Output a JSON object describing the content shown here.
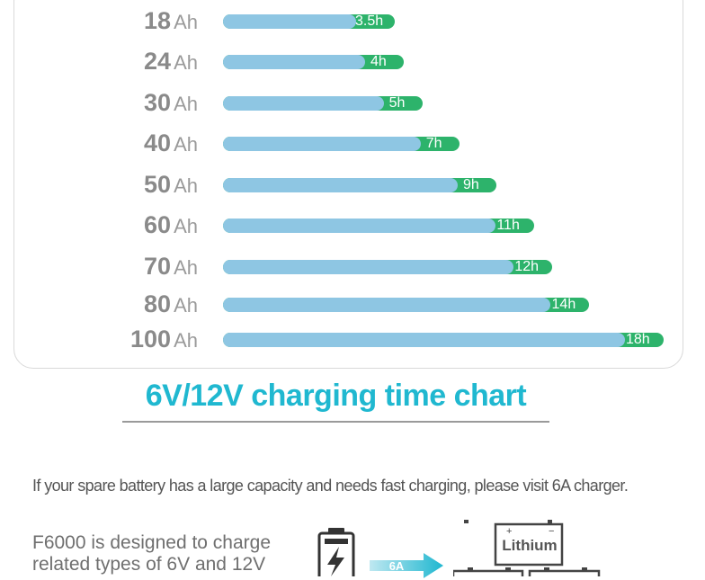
{
  "chart_data": {
    "type": "bar",
    "orientation": "horizontal",
    "title": "6V/12V charging time chart",
    "categories": [
      "18",
      "24",
      "30",
      "40",
      "50",
      "60",
      "70",
      "80",
      "100"
    ],
    "unit": "Ah",
    "values": [
      3.5,
      4,
      5,
      7,
      9,
      11,
      12,
      14,
      18
    ],
    "value_labels": [
      "3.5h",
      "4h",
      "5h",
      "7h",
      "9h",
      "11h",
      "12h",
      "14h",
      "18h"
    ],
    "colors": {
      "bar": "#8ec6e3",
      "bar_end": "#2db36b",
      "title": "#20b8d0"
    }
  },
  "footer": {
    "note": "If your spare battery has a large capacity and needs fast charging, please visit 6A charger.",
    "desc_lines": [
      "F6000 is designed to charge",
      "related types of 6V and 12V"
    ],
    "arrow_label": "6A",
    "battery_label": "Lithium",
    "icons": [
      "battery-charging-icon",
      "arrow-right-icon",
      "battery-icon"
    ]
  }
}
